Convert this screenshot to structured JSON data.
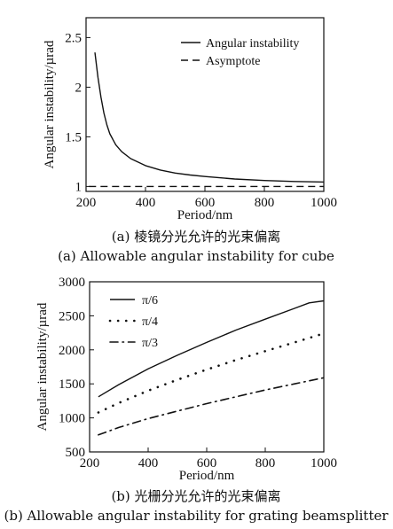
{
  "chart_data": [
    {
      "type": "line",
      "xlabel": "Period/nm",
      "ylabel": "Angular  instability/µrad",
      "xlim": [
        200,
        1000
      ],
      "ylim": [
        0.95,
        2.7
      ],
      "xticks": [
        200,
        400,
        600,
        800,
        1000
      ],
      "yticks": [
        1,
        1.5,
        2,
        2.5
      ],
      "ytick_labels": [
        "1",
        "1.5",
        "2",
        "2.5"
      ],
      "grid": false,
      "legend_position": "top-right",
      "caption_cn": "(a) 棱镜分光允许的光束偏离",
      "caption_en": "(a) Allowable angular instability for cube",
      "series": [
        {
          "name": "Angular instability",
          "style": "solid",
          "x": [
            230,
            240,
            250,
            260,
            270,
            280,
            300,
            320,
            350,
            400,
            450,
            500,
            550,
            600,
            700,
            800,
            900,
            1000
          ],
          "y": [
            2.35,
            2.1,
            1.9,
            1.74,
            1.62,
            1.53,
            1.42,
            1.35,
            1.28,
            1.21,
            1.165,
            1.135,
            1.115,
            1.1,
            1.075,
            1.06,
            1.05,
            1.045
          ]
        },
        {
          "name": "Asymptote",
          "style": "dashed",
          "x": [
            210,
            1000
          ],
          "y": [
            1.0,
            1.0
          ]
        }
      ]
    },
    {
      "type": "line",
      "xlabel": "Period/nm",
      "ylabel": "Angular  instability/µrad",
      "xlim": [
        200,
        1000
      ],
      "ylim": [
        500,
        3000
      ],
      "xticks": [
        200,
        400,
        600,
        800,
        1000
      ],
      "yticks": [
        500,
        1000,
        1500,
        2000,
        2500,
        3000
      ],
      "ytick_labels": [
        "500",
        "1000",
        "1500",
        "2000",
        "2500",
        "3000"
      ],
      "grid": false,
      "legend_position": "top-left",
      "caption_cn": "(b) 光栅分光允许的光束偏离",
      "caption_en": "(b) Allowable angular instability for grating beamsplitter",
      "series": [
        {
          "name": "π/6",
          "style": "solid",
          "x": [
            230,
            300,
            400,
            500,
            600,
            700,
            800,
            900,
            950,
            1000
          ],
          "y": [
            1310,
            1490,
            1720,
            1920,
            2110,
            2290,
            2450,
            2610,
            2690,
            2720
          ]
        },
        {
          "name": "π/4",
          "style": "dotted",
          "x": [
            230,
            300,
            400,
            500,
            600,
            700,
            800,
            900,
            1000
          ],
          "y": [
            1080,
            1220,
            1400,
            1560,
            1710,
            1850,
            1980,
            2110,
            2240
          ]
        },
        {
          "name": "π/3",
          "style": "dashdot",
          "x": [
            230,
            300,
            400,
            500,
            600,
            700,
            800,
            900,
            1000
          ],
          "y": [
            750,
            860,
            990,
            1100,
            1210,
            1310,
            1410,
            1500,
            1590
          ]
        }
      ]
    }
  ]
}
